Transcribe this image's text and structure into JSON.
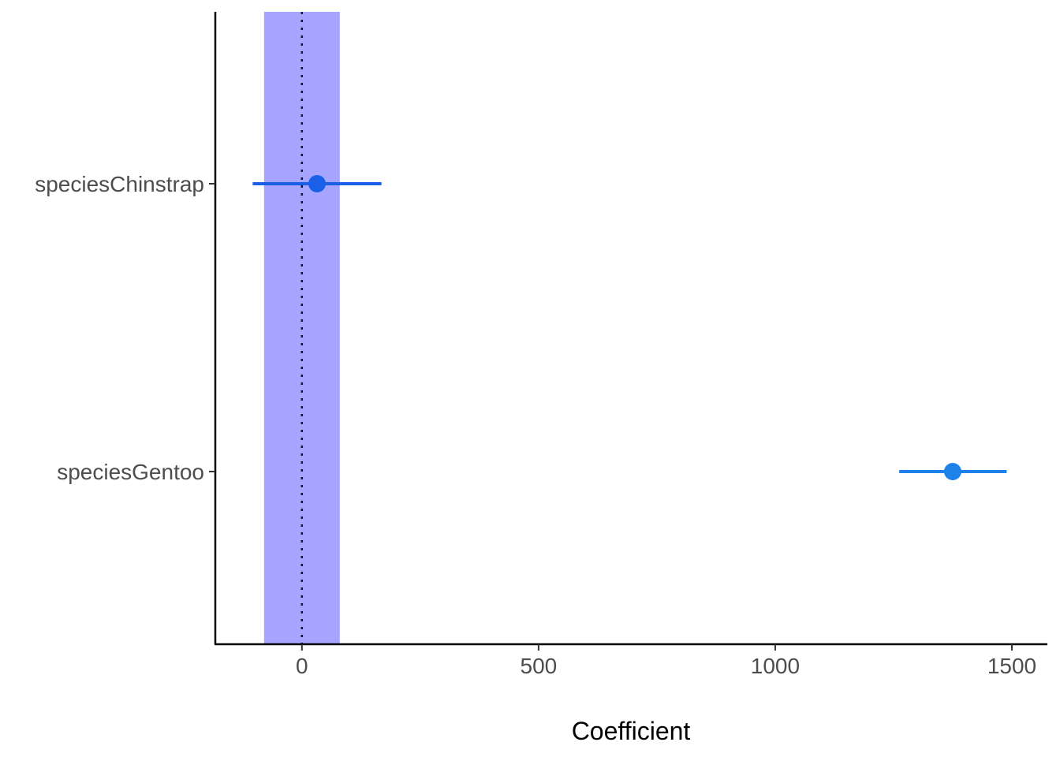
{
  "chart_data": {
    "type": "scatter",
    "subtype": "coefficient-plot",
    "xlabel": "Coefficient",
    "ylabel": "",
    "xlim": [
      -183,
      1575
    ],
    "xticks": [
      0,
      500,
      1000,
      1500
    ],
    "xtick_labels": [
      "0",
      "500",
      "1000",
      "1500"
    ],
    "categories": [
      "speciesChinstrap",
      "speciesGentoo"
    ],
    "series": [
      {
        "points": [
          {
            "term": "speciesChinstrap",
            "estimate": 32,
            "conf_low": -104,
            "conf_high": 168
          },
          {
            "term": "speciesGentoo",
            "estimate": 1375,
            "conf_low": 1262,
            "conf_high": 1489
          }
        ]
      }
    ],
    "reference_line": {
      "x": 0,
      "style": "dotted"
    },
    "rope_band": {
      "x_min": -80,
      "x_max": 80,
      "color": "#a5a5ff"
    },
    "point_colors": [
      "#1a5fe8",
      "#1f82ea"
    ],
    "grid": false,
    "legend": "none"
  }
}
